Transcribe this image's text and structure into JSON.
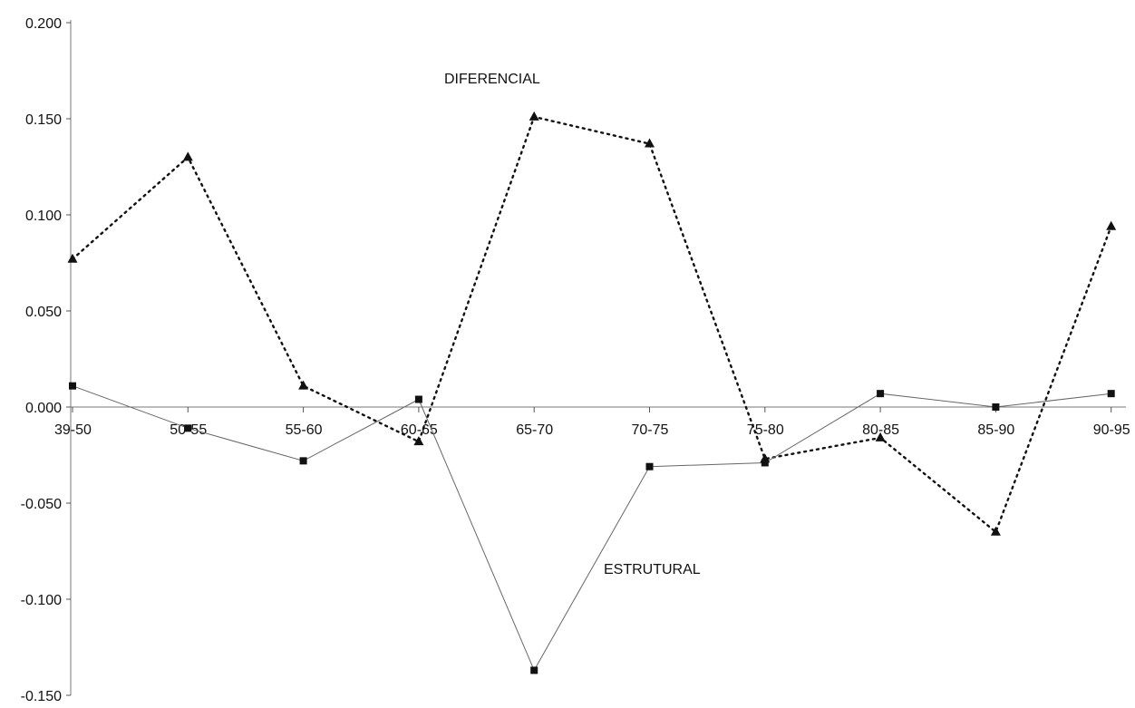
{
  "chart_data": {
    "type": "line",
    "categories": [
      "39-50",
      "50-55",
      "55-60",
      "60-65",
      "65-70",
      "70-75",
      "75-80",
      "80-85",
      "85-90",
      "90-95"
    ],
    "series": [
      {
        "name": "DIFERENCIAL",
        "marker": "triangle",
        "line_style": "dotted",
        "color": "#111111",
        "values": [
          0.077,
          0.13,
          0.011,
          -0.018,
          0.151,
          0.137,
          -0.027,
          -0.016,
          -0.065,
          0.094
        ]
      },
      {
        "name": "ESTRUTURAL",
        "marker": "square",
        "line_style": "solid-thin",
        "color": "#555555",
        "values": [
          0.011,
          -0.011,
          -0.028,
          0.004,
          -0.137,
          -0.031,
          -0.029,
          0.007,
          0.0,
          0.007
        ]
      }
    ],
    "yticks": [
      "0.200",
      "0.150",
      "0.100",
      "0.050",
      "0.000",
      "-0.050",
      "-0.100",
      "-0.150"
    ],
    "ylim": [
      -0.15,
      0.2
    ],
    "annotations": {
      "diferencial": "DIFERENCIAL",
      "estrutural": "ESTRUTURAL"
    },
    "xlabel": "",
    "ylabel": "",
    "grid": false,
    "legend": "none"
  }
}
